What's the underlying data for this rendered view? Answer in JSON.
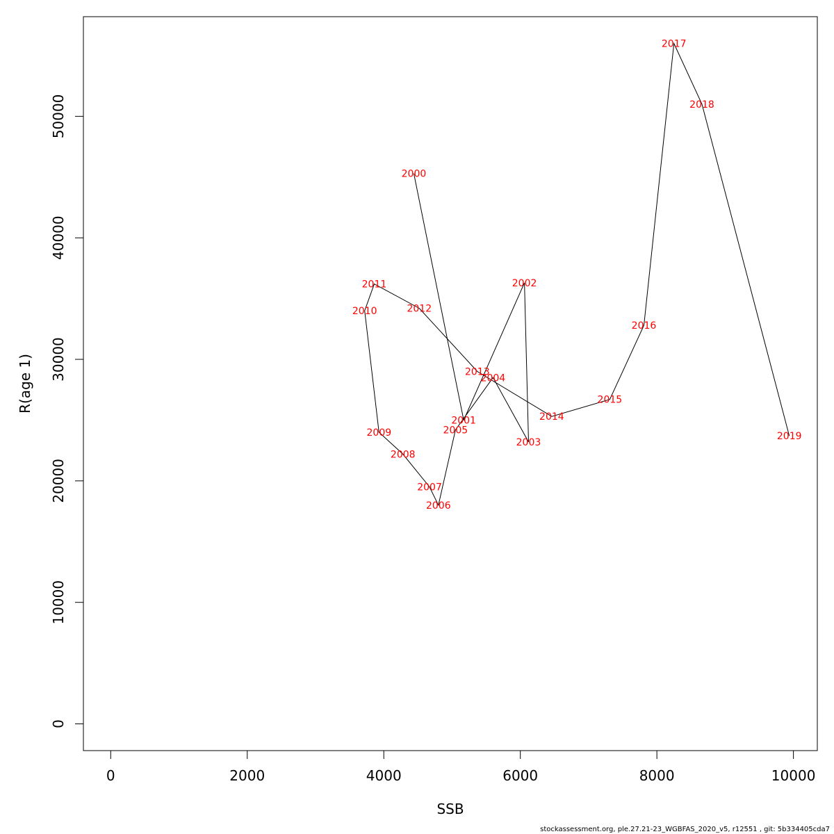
{
  "chart_data": {
    "type": "line",
    "xlabel": "SSB",
    "ylabel": "R(age 1)",
    "xlim": [
      -400,
      10350
    ],
    "ylim": [
      -2200,
      58200
    ],
    "x_ticks": [
      0,
      2000,
      4000,
      6000,
      8000,
      10000
    ],
    "y_ticks": [
      0,
      10000,
      20000,
      30000,
      40000,
      50000
    ],
    "grid": false,
    "line_color": "#000000",
    "label_color": "#ff0000",
    "points": [
      {
        "label": "2000",
        "x": 4440,
        "y": 45300
      },
      {
        "label": "2001",
        "x": 5170,
        "y": 25000
      },
      {
        "label": "2002",
        "x": 6060,
        "y": 36300
      },
      {
        "label": "2003",
        "x": 6120,
        "y": 23200
      },
      {
        "label": "2004",
        "x": 5600,
        "y": 28500
      },
      {
        "label": "2005",
        "x": 5050,
        "y": 24200
      },
      {
        "label": "2006",
        "x": 4800,
        "y": 18000
      },
      {
        "label": "2007",
        "x": 4670,
        "y": 19500
      },
      {
        "label": "2008",
        "x": 4280,
        "y": 22200
      },
      {
        "label": "2009",
        "x": 3930,
        "y": 24000
      },
      {
        "label": "2010",
        "x": 3720,
        "y": 34000
      },
      {
        "label": "2011",
        "x": 3860,
        "y": 36200
      },
      {
        "label": "2012",
        "x": 4520,
        "y": 34200
      },
      {
        "label": "2013",
        "x": 5370,
        "y": 29000
      },
      {
        "label": "2014",
        "x": 6460,
        "y": 25300
      },
      {
        "label": "2015",
        "x": 7310,
        "y": 26700
      },
      {
        "label": "2016",
        "x": 7810,
        "y": 32800
      },
      {
        "label": "2017",
        "x": 8250,
        "y": 56000
      },
      {
        "label": "2018",
        "x": 8660,
        "y": 51000
      },
      {
        "label": "2019",
        "x": 9940,
        "y": 23700
      }
    ]
  },
  "footer": "stockassessment.org, ple.27.21-23_WGBFAS_2020_v5, r12551 , git: 5b334405cda7"
}
